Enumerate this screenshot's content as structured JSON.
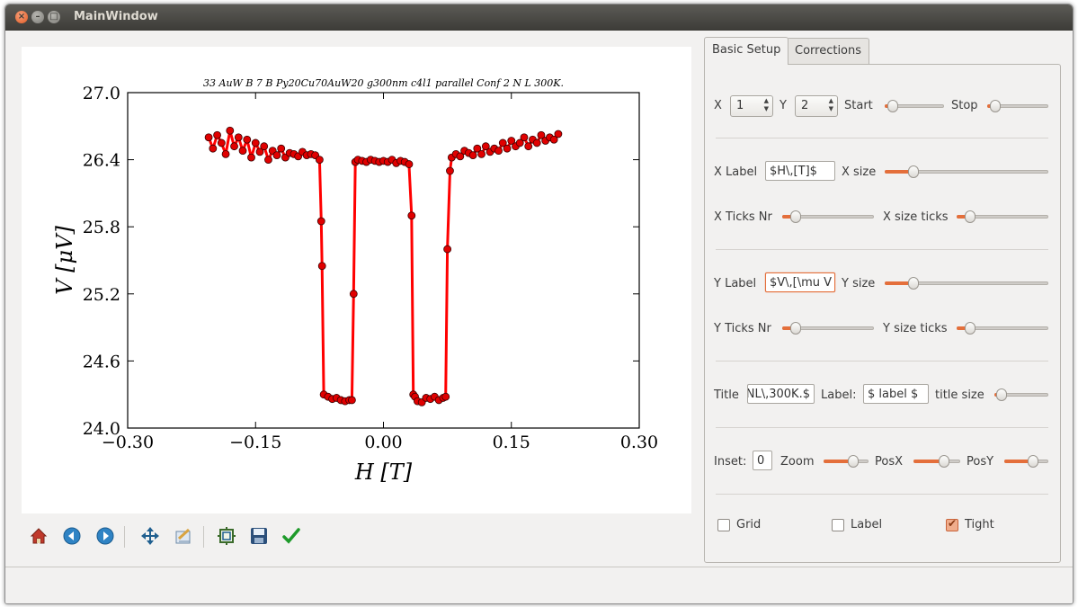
{
  "window": {
    "title": "MainWindow",
    "close": "×",
    "minimize": "–",
    "maximize": "□"
  },
  "colors": {
    "accent": "#e46f3b",
    "plot_line": "#ff0000",
    "marker": "#e00000"
  },
  "toolbar": {
    "icons": [
      "home-icon",
      "back-icon",
      "forward-icon",
      "pan-icon",
      "configure-subplots-icon",
      "zoom-icon",
      "save-icon",
      "apply-check-icon"
    ]
  },
  "tabs": [
    {
      "label": "Basic Setup"
    },
    {
      "label": "Corrections"
    }
  ],
  "setup": {
    "x_label": "X",
    "x_value": "1",
    "y_label": "Y",
    "y_value": "2",
    "start_label": "Start",
    "start_level": 0.05,
    "stop_label": "Stop",
    "stop_level": 0.05,
    "xlabel_label": "X Label",
    "xlabel_value": "$H\\,[T]$",
    "xsize_label": "X size",
    "xsize_level": 0.15,
    "xticks_label": "X Ticks Nr",
    "xticks_level": 0.1,
    "xsizeticks_label": "X size ticks",
    "xsizeticks_level": 0.1,
    "ylabel_label": "Y Label",
    "ylabel_value": "$V\\,[\\mu V",
    "ysize_label": "Y size",
    "ysize_level": 0.15,
    "yticks_label": "Y Ticks Nr",
    "yticks_level": 0.1,
    "ysizeticks_label": "Y size ticks",
    "ysizeticks_level": 0.1,
    "title_label": "Title",
    "title_value": "NL\\,300K.$",
    "label_label": "Label:",
    "label_value": "$ label $",
    "titlesize_label": "title size",
    "titlesize_level": 0.05,
    "inset_label": "Inset:",
    "inset_value": "0",
    "zoom_label": "Zoom",
    "zoom_level": 0.7,
    "posx_label": "PosX",
    "posx_level": 0.7,
    "posy_label": "PosY",
    "posy_level": 0.7,
    "grid_label": "Grid",
    "grid_checked": false,
    "labelcb_label": "Label",
    "labelcb_checked": false,
    "tight_label": "Tight",
    "tight_checked": true
  },
  "chart_data": {
    "type": "line",
    "title": "33 AuW B 7  B Py20Cu70AuW20 g300nm c4l1 parallel Conf 2 N L 300K.",
    "xlabel": "H [T]",
    "ylabel": "V [μV]",
    "xlim": [
      -0.3,
      0.3
    ],
    "ylim": [
      24.0,
      27.0
    ],
    "xticks": [
      "−0.30",
      "−0.15",
      "0.00",
      "0.15",
      "0.30"
    ],
    "yticks": [
      "24.0",
      "24.6",
      "25.2",
      "25.8",
      "26.4",
      "27.0"
    ],
    "grid": false,
    "series": [
      {
        "x": [
          -0.205,
          -0.2,
          -0.195,
          -0.19,
          -0.185,
          -0.18,
          -0.175,
          -0.17,
          -0.165,
          -0.16,
          -0.155,
          -0.15,
          -0.145,
          -0.14,
          -0.135,
          -0.13,
          -0.125,
          -0.12,
          -0.115,
          -0.11,
          -0.105,
          -0.1,
          -0.095,
          -0.09,
          -0.085,
          -0.08,
          -0.075,
          -0.073,
          -0.072,
          -0.07,
          -0.065,
          -0.06,
          -0.055,
          -0.05,
          -0.045,
          -0.04,
          -0.037,
          -0.035,
          -0.033,
          -0.03,
          -0.025,
          -0.02,
          -0.015,
          -0.01,
          -0.005,
          0.0,
          0.005,
          0.01,
          0.015,
          0.02,
          0.025,
          0.03,
          0.033,
          0.035,
          0.037,
          0.04,
          0.045,
          0.05,
          0.055,
          0.06,
          0.065,
          0.07,
          0.073,
          0.075,
          0.078,
          0.08,
          0.085,
          0.09,
          0.095,
          0.1,
          0.105,
          0.11,
          0.115,
          0.12,
          0.125,
          0.13,
          0.135,
          0.14,
          0.145,
          0.15,
          0.155,
          0.16,
          0.165,
          0.17,
          0.175,
          0.18,
          0.185,
          0.19,
          0.195,
          0.2,
          0.205
        ],
        "y": [
          26.6,
          26.5,
          26.62,
          26.55,
          26.45,
          26.66,
          26.52,
          26.6,
          26.48,
          26.58,
          26.42,
          26.55,
          26.47,
          26.52,
          26.4,
          26.48,
          26.44,
          26.5,
          26.42,
          26.46,
          26.45,
          26.43,
          26.47,
          26.44,
          26.45,
          26.44,
          26.4,
          25.85,
          25.45,
          24.3,
          24.28,
          24.26,
          24.27,
          24.25,
          24.24,
          24.25,
          24.25,
          25.2,
          26.38,
          26.4,
          26.39,
          26.38,
          26.4,
          26.39,
          26.38,
          26.39,
          26.38,
          26.4,
          26.37,
          26.39,
          26.38,
          26.36,
          25.9,
          24.3,
          24.28,
          24.24,
          24.23,
          24.27,
          24.26,
          24.28,
          24.25,
          24.27,
          24.28,
          25.6,
          26.3,
          26.42,
          26.45,
          26.43,
          26.48,
          26.46,
          26.44,
          26.5,
          26.45,
          26.52,
          26.47,
          26.5,
          26.48,
          26.55,
          26.5,
          26.57,
          26.52,
          26.55,
          26.6,
          26.52,
          26.58,
          26.55,
          26.62,
          26.57,
          26.6,
          26.58,
          26.63
        ]
      }
    ]
  }
}
